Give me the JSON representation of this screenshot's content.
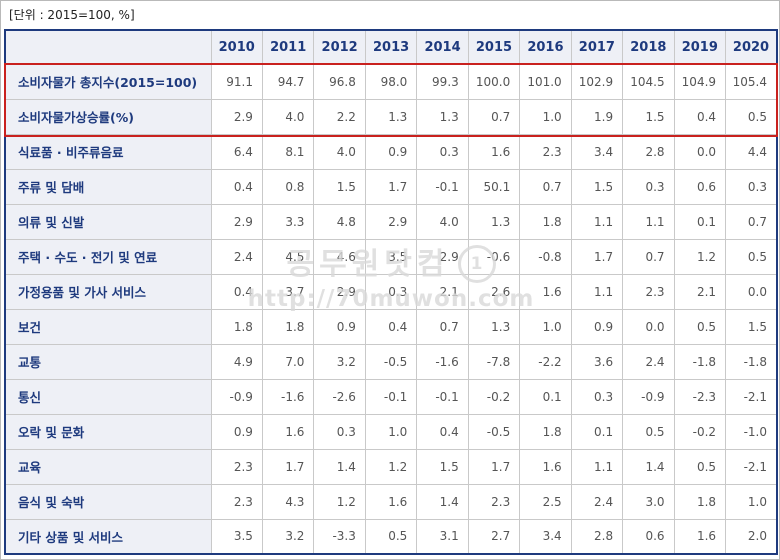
{
  "note": "[단위 : 2015=100, %]",
  "table": {
    "corner_label": "",
    "years": [
      "2010",
      "2011",
      "2012",
      "2013",
      "2014",
      "2015",
      "2016",
      "2017",
      "2018",
      "2019",
      "2020"
    ],
    "rows": [
      {
        "label": "소비자물가 총지수(2015=100)",
        "highlighted": true,
        "values": [
          "91.1",
          "94.7",
          "96.8",
          "98.0",
          "99.3",
          "100.0",
          "101.0",
          "102.9",
          "104.5",
          "104.9",
          "105.4"
        ]
      },
      {
        "label": "소비자물가상승률(%)",
        "highlighted": true,
        "values": [
          "2.9",
          "4.0",
          "2.2",
          "1.3",
          "1.3",
          "0.7",
          "1.0",
          "1.9",
          "1.5",
          "0.4",
          "0.5"
        ]
      },
      {
        "label": "식료품 · 비주류음료",
        "highlighted": false,
        "values": [
          "6.4",
          "8.1",
          "4.0",
          "0.9",
          "0.3",
          "1.6",
          "2.3",
          "3.4",
          "2.8",
          "0.0",
          "4.4"
        ]
      },
      {
        "label": "주류 및 담배",
        "highlighted": false,
        "values": [
          "0.4",
          "0.8",
          "1.5",
          "1.7",
          "-0.1",
          "50.1",
          "0.7",
          "1.5",
          "0.3",
          "0.6",
          "0.3"
        ]
      },
      {
        "label": "의류 및 신발",
        "highlighted": false,
        "values": [
          "2.9",
          "3.3",
          "4.8",
          "2.9",
          "4.0",
          "1.3",
          "1.8",
          "1.1",
          "1.1",
          "0.1",
          "0.7"
        ]
      },
      {
        "label": "주택 · 수도 · 전기 및 연료",
        "highlighted": false,
        "values": [
          "2.4",
          "4.5",
          "4.6",
          "3.5",
          "2.9",
          "-0.6",
          "-0.8",
          "1.7",
          "0.7",
          "1.2",
          "0.5"
        ]
      },
      {
        "label": "가정용품 및 가사 서비스",
        "highlighted": false,
        "values": [
          "0.4",
          "3.7",
          "2.9",
          "0.3",
          "2.1",
          "2.6",
          "1.6",
          "1.1",
          "2.3",
          "2.1",
          "0.0"
        ]
      },
      {
        "label": "보건",
        "highlighted": false,
        "values": [
          "1.8",
          "1.8",
          "0.9",
          "0.4",
          "0.7",
          "1.3",
          "1.0",
          "0.9",
          "0.0",
          "0.5",
          "1.5"
        ]
      },
      {
        "label": "교통",
        "highlighted": false,
        "values": [
          "4.9",
          "7.0",
          "3.2",
          "-0.5",
          "-1.6",
          "-7.8",
          "-2.2",
          "3.6",
          "2.4",
          "-1.8",
          "-1.8"
        ]
      },
      {
        "label": "통신",
        "highlighted": false,
        "values": [
          "-0.9",
          "-1.6",
          "-2.6",
          "-0.1",
          "-0.1",
          "-0.2",
          "0.1",
          "0.3",
          "-0.9",
          "-2.3",
          "-2.1"
        ]
      },
      {
        "label": "오락 및 문화",
        "highlighted": false,
        "values": [
          "0.9",
          "1.6",
          "0.3",
          "1.0",
          "0.4",
          "-0.5",
          "1.8",
          "0.1",
          "0.5",
          "-0.2",
          "-1.0"
        ]
      },
      {
        "label": "교육",
        "highlighted": false,
        "values": [
          "2.3",
          "1.7",
          "1.4",
          "1.2",
          "1.5",
          "1.7",
          "1.6",
          "1.1",
          "1.4",
          "0.5",
          "-2.1"
        ]
      },
      {
        "label": "음식 및 숙박",
        "highlighted": false,
        "values": [
          "2.3",
          "4.3",
          "1.2",
          "1.6",
          "1.4",
          "2.3",
          "2.5",
          "2.4",
          "3.0",
          "1.8",
          "1.0"
        ]
      },
      {
        "label": "기타 상품 및 서비스",
        "highlighted": false,
        "values": [
          "3.5",
          "3.2",
          "-3.3",
          "0.5",
          "3.1",
          "2.7",
          "3.4",
          "2.8",
          "0.6",
          "1.6",
          "2.0"
        ]
      }
    ]
  },
  "watermark": {
    "line1": "공무원닷컴",
    "badge": "1",
    "line2": "http://70muwon.com"
  },
  "colors": {
    "navy": "#1e3a7e",
    "red": "#c9211e",
    "header_bg": "#eef0f6",
    "grid": "#c9c9c9",
    "value_text": "#555555",
    "watermark": "#d9d9d9"
  }
}
